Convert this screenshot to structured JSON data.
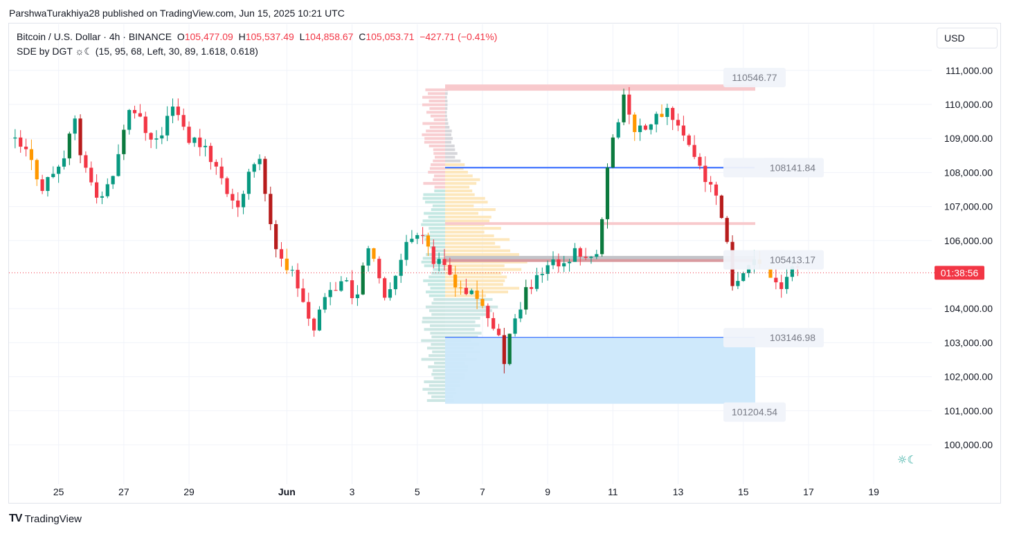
{
  "publisher_line": "ParshwaTurakhiya28 published on TradingView.com, Jun 15, 2025 10:21 UTC",
  "legend": {
    "symbol": "Bitcoin / U.S. Dollar · 4h · BINANCE",
    "o_label": "O",
    "o_value": "105,477.09",
    "h_label": "H",
    "h_value": "105,537.49",
    "l_label": "L",
    "l_value": "104,858.67",
    "c_label": "C",
    "c_value": "105,053.71",
    "change": "−427.71 (−0.41%)",
    "indicator": "SDE by DGT ☼☾ (15, 95, 68, Left, 30, 89, 1.618, 0.618)"
  },
  "currency_button": "USD",
  "countdown": "01:38:56",
  "footer_logo": "TradingView",
  "colors": {
    "up": "#089981",
    "down": "#f23645",
    "up_dark": "#0b7a3e",
    "down_dark": "#b71c1c",
    "blue_line": "#2962ff",
    "zone": "#cce8fb",
    "orange": "#ff9800"
  },
  "chart_data": {
    "type": "candlestick",
    "ylim": [
      99000,
      111900
    ],
    "x_ticks": [
      "25",
      "27",
      "29",
      "Jun",
      "3",
      "5",
      "7",
      "9",
      "11",
      "13",
      "15",
      "17",
      "19"
    ],
    "y_ticks": [
      "100,000.00",
      "101,000.00",
      "102,000.00",
      "103,000.00",
      "104,000.00",
      "106,000.00",
      "107,000.00",
      "108,000.00",
      "109,000.00",
      "110,000.00",
      "111,000.00"
    ],
    "levels": [
      {
        "label": "110546.77",
        "value": 110546.77
      },
      {
        "label": "108141.84",
        "value": 108141.84
      },
      {
        "label": "105413.17",
        "value": 105413.17
      },
      {
        "label": "103146.98",
        "value": 103146.98
      },
      {
        "label": "101204.54",
        "value": 101204.54
      }
    ],
    "current_price": 105053.71,
    "anchors": [
      {
        "d": 0,
        "v": 109000
      },
      {
        "d": 0.5,
        "v": 108600
      },
      {
        "d": 1.0,
        "v": 107600
      },
      {
        "d": 1.6,
        "v": 108300
      },
      {
        "d": 2.0,
        "v": 109400
      },
      {
        "d": 2.4,
        "v": 107700
      },
      {
        "d": 2.8,
        "v": 107000
      },
      {
        "d": 3.3,
        "v": 108500
      },
      {
        "d": 3.7,
        "v": 110100
      },
      {
        "d": 4.1,
        "v": 109300
      },
      {
        "d": 4.6,
        "v": 108900
      },
      {
        "d": 5.0,
        "v": 110100
      },
      {
        "d": 5.5,
        "v": 109000
      },
      {
        "d": 6.0,
        "v": 108800
      },
      {
        "d": 6.7,
        "v": 107400
      },
      {
        "d": 7.1,
        "v": 107000
      },
      {
        "d": 7.6,
        "v": 108800
      },
      {
        "d": 8.1,
        "v": 106000
      },
      {
        "d": 8.8,
        "v": 104800
      },
      {
        "d": 9.3,
        "v": 103400
      },
      {
        "d": 9.7,
        "v": 104200
      },
      {
        "d": 10.2,
        "v": 104900
      },
      {
        "d": 10.6,
        "v": 104300
      },
      {
        "d": 11.0,
        "v": 105800
      },
      {
        "d": 11.5,
        "v": 104200
      },
      {
        "d": 12.0,
        "v": 105600
      },
      {
        "d": 12.6,
        "v": 106500
      },
      {
        "d": 13.0,
        "v": 105400
      },
      {
        "d": 13.5,
        "v": 105000
      },
      {
        "d": 14.0,
        "v": 104500
      },
      {
        "d": 14.5,
        "v": 104100
      },
      {
        "d": 15.0,
        "v": 103200
      },
      {
        "d": 15.1,
        "v": 101800
      },
      {
        "d": 15.3,
        "v": 103000
      },
      {
        "d": 15.8,
        "v": 104400
      },
      {
        "d": 16.2,
        "v": 104900
      },
      {
        "d": 16.7,
        "v": 105300
      },
      {
        "d": 17.4,
        "v": 105600
      },
      {
        "d": 18.0,
        "v": 105500
      },
      {
        "d": 18.3,
        "v": 107900
      },
      {
        "d": 18.8,
        "v": 110200
      },
      {
        "d": 19.2,
        "v": 109300
      },
      {
        "d": 19.7,
        "v": 109500
      },
      {
        "d": 20.2,
        "v": 109900
      },
      {
        "d": 20.8,
        "v": 108900
      },
      {
        "d": 21.3,
        "v": 107900
      },
      {
        "d": 21.8,
        "v": 107000
      },
      {
        "d": 22.0,
        "v": 105800
      },
      {
        "d": 22.1,
        "v": 104400
      },
      {
        "d": 22.4,
        "v": 105000
      },
      {
        "d": 22.9,
        "v": 105600
      },
      {
        "d": 23.3,
        "v": 104800
      },
      {
        "d": 23.7,
        "v": 104600
      },
      {
        "d": 24.0,
        "v": 105400
      },
      {
        "d": 24.3,
        "v": 105050
      }
    ]
  }
}
